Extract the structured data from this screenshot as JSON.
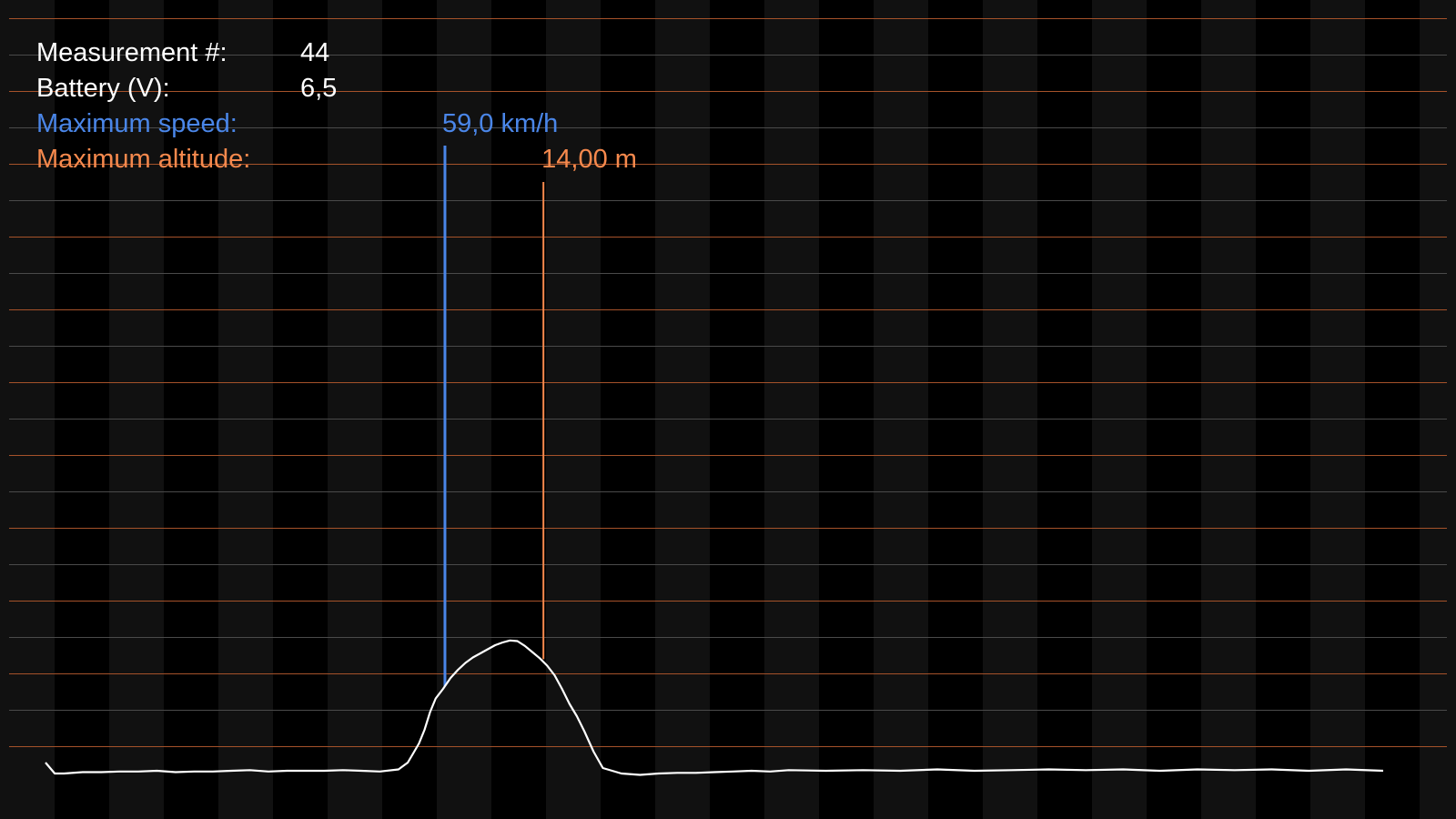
{
  "info": {
    "measurement_label": "Measurement #:",
    "measurement_value": "44",
    "battery_label": "Battery (V):",
    "battery_value": "6,5",
    "max_speed_label": "Maximum speed:",
    "max_speed_value": "59,0 km/h",
    "max_altitude_label": "Maximum altitude:",
    "max_altitude_value": "14,00 m"
  },
  "colors": {
    "background": "#000000",
    "stripe": "#111111",
    "grid_gray": "#4a4a4a",
    "grid_orange": "#a5522a",
    "speed": "#4a86e8",
    "altitude": "#f6894d",
    "trace": "#ffffff"
  },
  "chart_data": {
    "type": "line",
    "title": "",
    "xlabel": "",
    "ylabel": "",
    "ylim": [
      -1,
      20
    ],
    "grid": true,
    "series": [
      {
        "x": [
          0,
          5,
          10,
          20,
          30,
          40,
          50,
          60,
          70,
          80,
          90,
          100,
          110,
          120,
          130,
          140,
          150,
          160,
          170,
          180,
          190,
          195,
          198,
          201,
          204,
          207,
          210,
          214,
          218,
          222,
          226,
          230,
          234,
          238,
          242,
          246,
          250,
          254,
          258,
          262,
          266,
          270,
          274,
          278,
          282,
          286,
          290,
          295,
          300,
          310,
          320,
          330,
          340,
          350,
          360,
          370,
          380,
          390,
          400,
          420,
          440,
          460,
          480,
          500,
          520,
          540,
          560,
          580,
          600,
          620,
          640,
          660,
          680,
          700,
          720
        ],
        "values": [
          0.8,
          0,
          0,
          0.1,
          0.1,
          0.15,
          0.15,
          0.2,
          0.1,
          0.15,
          0.15,
          0.2,
          0.25,
          0.15,
          0.2,
          0.2,
          0.2,
          0.25,
          0.2,
          0.15,
          0.3,
          0.8,
          1.5,
          2.2,
          3.2,
          4.5,
          5.5,
          6.2,
          7,
          7.6,
          8.1,
          8.5,
          8.8,
          9.1,
          9.4,
          9.6,
          9.75,
          9.7,
          9.35,
          8.9,
          8.45,
          7.9,
          7.2,
          6.2,
          5.1,
          4.2,
          3.1,
          1.6,
          0.4,
          0,
          -0.1,
          0,
          0.05,
          0.05,
          0.1,
          0.15,
          0.2,
          0.15,
          0.25,
          0.2,
          0.25,
          0.2,
          0.3,
          0.2,
          0.25,
          0.3,
          0.25,
          0.3,
          0.2,
          0.3,
          0.25,
          0.3,
          0.2,
          0.3,
          0.2
        ]
      }
    ],
    "max_speed_x": 215,
    "max_altitude": 14.0,
    "max_altitude_x": 268
  }
}
